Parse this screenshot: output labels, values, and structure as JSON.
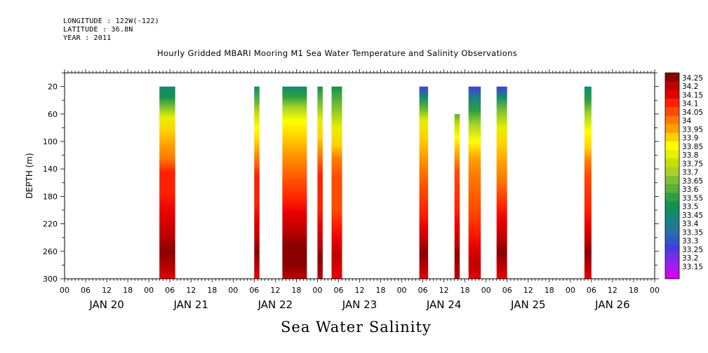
{
  "header": {
    "longitude": "LONGITUDE : 122W(-122)",
    "latitude": "LATITUDE : 36.8N",
    "year": "YEAR : 2011"
  },
  "title": "Hourly Gridded MBARI Mooring M1 Sea Water Temperature and Salinity Observations",
  "variable_label": "Sea Water Salinity",
  "chart_data": {
    "type": "heatmap",
    "title": "Hourly Gridded MBARI Mooring M1 Sea Water Temperature and Salinity Observations",
    "xlabel": "",
    "ylabel": "DEPTH (m)",
    "ylim": [
      300,
      0
    ],
    "y_ticks": [
      20,
      60,
      100,
      140,
      180,
      220,
      260,
      300
    ],
    "x_hour_ticks": [
      "00",
      "06",
      "12",
      "18",
      "00",
      "06",
      "12",
      "18",
      "00",
      "06",
      "12",
      "18",
      "00",
      "06",
      "12",
      "18",
      "00",
      "06",
      "12",
      "18",
      "00",
      "06",
      "12",
      "18",
      "00",
      "06",
      "12",
      "18",
      "00"
    ],
    "x_day_labels": [
      "JAN 20",
      "JAN 21",
      "JAN 22",
      "JAN 23",
      "JAN 24",
      "JAN 25",
      "JAN 26"
    ],
    "x_range_hours": [
      0,
      168
    ],
    "colorbar": {
      "levels": [
        "34.25",
        "34.2",
        "34.15",
        "34.1",
        "34.05",
        "34",
        "33.95",
        "33.9",
        "33.85",
        "33.8",
        "33.75",
        "33.7",
        "33.65",
        "33.6",
        "33.55",
        "33.5",
        "33.45",
        "33.4",
        "33.35",
        "33.3",
        "33.25",
        "33.2",
        "33.15"
      ],
      "colors": [
        "#8b0000",
        "#c00000",
        "#e60000",
        "#ff2000",
        "#ff4a00",
        "#ff7a00",
        "#ffa000",
        "#ffd000",
        "#ffff00",
        "#e6f000",
        "#c8e000",
        "#a6d22a",
        "#7ec030",
        "#56b03a",
        "#2f9e40",
        "#14914e",
        "#108a70",
        "#1a7f8a",
        "#2a70a8",
        "#3258c8",
        "#4a3ae0",
        "#7a2ce8",
        "#a01ef0",
        "#d000f0"
      ]
    },
    "segments": [
      {
        "start_hour": 27,
        "end_hour": 31.5,
        "top_depth": 20,
        "profile": [
          [
            20,
            33.45
          ],
          [
            35,
            33.5
          ],
          [
            50,
            33.65
          ],
          [
            65,
            33.8
          ],
          [
            85,
            33.9
          ],
          [
            105,
            33.95
          ],
          [
            125,
            34.0
          ],
          [
            145,
            34.1
          ],
          [
            175,
            34.1
          ],
          [
            205,
            34.15
          ],
          [
            235,
            34.2
          ],
          [
            260,
            34.25
          ],
          [
            285,
            34.2
          ],
          [
            300,
            34.15
          ]
        ]
      },
      {
        "start_hour": 54,
        "end_hour": 55.5,
        "top_depth": 20,
        "profile": [
          [
            20,
            33.45
          ],
          [
            40,
            33.6
          ],
          [
            60,
            33.75
          ],
          [
            80,
            33.85
          ],
          [
            100,
            33.9
          ],
          [
            125,
            34.0
          ],
          [
            150,
            34.1
          ],
          [
            190,
            34.1
          ],
          [
            215,
            34.15
          ],
          [
            240,
            34.2
          ],
          [
            260,
            34.25
          ],
          [
            285,
            34.2
          ],
          [
            300,
            34.15
          ]
        ]
      },
      {
        "start_hour": 62,
        "end_hour": 69,
        "top_depth": 20,
        "profile": [
          [
            20,
            33.45
          ],
          [
            35,
            33.55
          ],
          [
            50,
            33.7
          ],
          [
            70,
            33.85
          ],
          [
            95,
            33.9
          ],
          [
            115,
            33.95
          ],
          [
            135,
            34.0
          ],
          [
            160,
            34.05
          ],
          [
            185,
            34.1
          ],
          [
            205,
            34.15
          ],
          [
            230,
            34.2
          ],
          [
            250,
            34.25
          ],
          [
            280,
            34.25
          ],
          [
            300,
            34.2
          ]
        ]
      },
      {
        "start_hour": 72,
        "end_hour": 73.5,
        "top_depth": 20,
        "profile": [
          [
            20,
            33.5
          ],
          [
            45,
            33.65
          ],
          [
            70,
            33.8
          ],
          [
            95,
            33.9
          ],
          [
            120,
            34.0
          ],
          [
            150,
            34.1
          ],
          [
            200,
            34.1
          ],
          [
            225,
            34.15
          ],
          [
            250,
            34.2
          ],
          [
            270,
            34.25
          ],
          [
            300,
            34.2
          ]
        ]
      },
      {
        "start_hour": 76,
        "end_hour": 79,
        "top_depth": 20,
        "profile": [
          [
            20,
            33.5
          ],
          [
            50,
            33.65
          ],
          [
            80,
            33.8
          ],
          [
            105,
            33.9
          ],
          [
            125,
            34.0
          ],
          [
            155,
            34.05
          ],
          [
            200,
            34.05
          ],
          [
            220,
            34.1
          ],
          [
            245,
            34.15
          ],
          [
            265,
            34.2
          ],
          [
            300,
            34.15
          ]
        ]
      },
      {
        "start_hour": 101,
        "end_hour": 103.5,
        "top_depth": 20,
        "profile": [
          [
            20,
            33.25
          ],
          [
            35,
            33.45
          ],
          [
            50,
            33.6
          ],
          [
            70,
            33.8
          ],
          [
            95,
            33.9
          ],
          [
            120,
            33.95
          ],
          [
            140,
            34.0
          ],
          [
            170,
            34.05
          ],
          [
            205,
            34.1
          ],
          [
            225,
            34.15
          ],
          [
            245,
            34.2
          ],
          [
            262,
            34.25
          ],
          [
            285,
            34.2
          ],
          [
            300,
            34.15
          ]
        ]
      },
      {
        "start_hour": 111,
        "end_hour": 112.5,
        "top_depth": 60,
        "profile": [
          [
            60,
            33.6
          ],
          [
            75,
            33.75
          ],
          [
            95,
            33.85
          ],
          [
            120,
            33.95
          ],
          [
            145,
            34.05
          ],
          [
            200,
            34.1
          ],
          [
            225,
            34.15
          ],
          [
            250,
            34.2
          ],
          [
            265,
            34.25
          ],
          [
            300,
            34.2
          ]
        ]
      },
      {
        "start_hour": 115,
        "end_hour": 118.5,
        "top_depth": 20,
        "profile": [
          [
            20,
            33.25
          ],
          [
            35,
            33.4
          ],
          [
            55,
            33.55
          ],
          [
            75,
            33.7
          ],
          [
            100,
            33.85
          ],
          [
            125,
            33.95
          ],
          [
            150,
            34.0
          ],
          [
            200,
            34.05
          ],
          [
            230,
            34.1
          ],
          [
            255,
            34.15
          ],
          [
            280,
            34.2
          ],
          [
            300,
            34.15
          ]
        ]
      },
      {
        "start_hour": 123,
        "end_hour": 126,
        "top_depth": 20,
        "profile": [
          [
            20,
            33.25
          ],
          [
            35,
            33.45
          ],
          [
            55,
            33.65
          ],
          [
            80,
            33.8
          ],
          [
            105,
            33.9
          ],
          [
            130,
            33.95
          ],
          [
            155,
            34.0
          ],
          [
            195,
            34.1
          ],
          [
            215,
            34.15
          ],
          [
            240,
            34.2
          ],
          [
            260,
            34.25
          ],
          [
            285,
            34.2
          ],
          [
            300,
            34.15
          ]
        ]
      },
      {
        "start_hour": 148,
        "end_hour": 150,
        "top_depth": 20,
        "profile": [
          [
            20,
            33.45
          ],
          [
            40,
            33.55
          ],
          [
            60,
            33.7
          ],
          [
            85,
            33.85
          ],
          [
            110,
            33.9
          ],
          [
            130,
            34.0
          ],
          [
            150,
            34.05
          ],
          [
            200,
            34.1
          ],
          [
            225,
            34.15
          ],
          [
            245,
            34.2
          ],
          [
            260,
            34.25
          ],
          [
            285,
            34.2
          ],
          [
            300,
            34.15
          ]
        ]
      }
    ]
  }
}
